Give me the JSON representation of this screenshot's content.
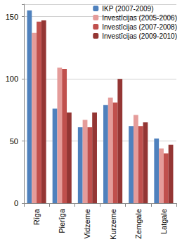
{
  "chart_data": {
    "type": "bar",
    "categories": [
      "Rīga",
      "Pierīga",
      "Vidzeme",
      "Kurzeme",
      "Zemgale",
      "Latgale"
    ],
    "series": [
      {
        "name": "IKP (2007-2009)",
        "color": "#4f81bd",
        "values": [
          155,
          76,
          61,
          79,
          62,
          52
        ]
      },
      {
        "name": "Investīcijas (2005-2006)",
        "color": "#e59c9a",
        "values": [
          137,
          109,
          67,
          85,
          71,
          44
        ]
      },
      {
        "name": "Investīcijas (2007-2008)",
        "color": "#c0504d",
        "values": [
          146,
          108,
          61,
          81,
          62,
          40
        ]
      },
      {
        "name": "Investīcijas (2009-2010)",
        "color": "#943634",
        "values": [
          147,
          73,
          73,
          100,
          65,
          47
        ]
      }
    ],
    "ylim": [
      0,
      160
    ],
    "yticks": [
      0,
      50,
      100,
      150
    ],
    "grid": true,
    "legend": "upper right"
  }
}
